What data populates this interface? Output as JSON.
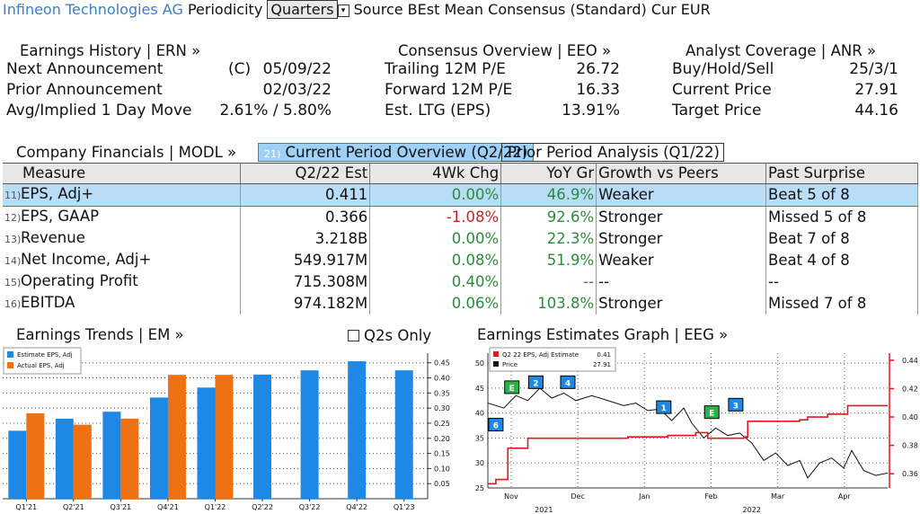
{
  "header": {
    "company": "Infineon Technologies AG",
    "periodicity_label": "Periodicity",
    "periodicity_value": "Quarters",
    "source_text": "Source BEst Mean Consensus (Standard) Cur EUR"
  },
  "earnings_history": {
    "title": "Earnings History | ERN »",
    "rows": [
      {
        "label": "Next Announcement",
        "prefix": "(C)",
        "value": "05/09/22"
      },
      {
        "label": "Prior Announcement",
        "prefix": "",
        "value": "02/03/22"
      },
      {
        "label": "Avg/Implied 1 Day Move",
        "prefix": "",
        "value": "2.61% / 5.80%"
      }
    ]
  },
  "consensus": {
    "title": "Consensus Overview | EEO »",
    "rows": [
      {
        "label": "Trailing 12M P/E",
        "value": "26.72"
      },
      {
        "label": "Forward 12M P/E",
        "value": "16.33"
      },
      {
        "label": "Est. LTG (EPS)",
        "value": "13.91%"
      }
    ]
  },
  "analyst": {
    "title": "Analyst Coverage | ANR »",
    "rows": [
      {
        "label": "Buy/Hold/Sell",
        "value": "25/3/1"
      },
      {
        "label": "Current Price",
        "value": "27.91"
      },
      {
        "label": "Target Price",
        "value": "44.16"
      }
    ]
  },
  "financials": {
    "title": "Company Financials | MODL »",
    "tab_current_num": "21)",
    "tab_current": "Current Period Overview (Q2/22)",
    "tab_prior": "Prior Period Analysis (Q1/22)",
    "columns": [
      "Measure",
      "Q2/22 Est",
      "4Wk Chg",
      "YoY Gr",
      "Growth vs Peers",
      "Past Surprise"
    ],
    "rows": [
      {
        "num": "11)",
        "measure": "EPS, Adj+",
        "est": "0.411",
        "chg": "0.00%",
        "chg_class": "pos",
        "yoy": "46.9%",
        "peers": "Weaker",
        "surprise": "Beat 5 of 8"
      },
      {
        "num": "12)",
        "measure": "EPS, GAAP",
        "est": "0.366",
        "chg": "-1.08%",
        "chg_class": "neg",
        "yoy": "92.6%",
        "peers": "Stronger",
        "surprise": "Missed 5 of 8"
      },
      {
        "num": "13)",
        "measure": "Revenue",
        "est": "3.218B",
        "chg": "0.00%",
        "chg_class": "pos",
        "yoy": "22.3%",
        "peers": "Stronger",
        "surprise": "Beat 7 of 8"
      },
      {
        "num": "14)",
        "measure": "Net Income, Adj+",
        "est": "549.917M",
        "chg": "0.08%",
        "chg_class": "pos",
        "yoy": "51.9%",
        "peers": "Weaker",
        "surprise": "Beat 4 of 8"
      },
      {
        "num": "15)",
        "measure": "Operating Profit",
        "est": "715.308M",
        "chg": "0.40%",
        "chg_class": "pos",
        "yoy": "--",
        "peers": "--",
        "surprise": "--"
      },
      {
        "num": "16)",
        "measure": "EBITDA",
        "est": "974.182M",
        "chg": "0.06%",
        "chg_class": "pos",
        "yoy": "103.8%",
        "peers": "Stronger",
        "surprise": "Missed 7 of 8"
      }
    ]
  },
  "earnings_trends": {
    "title": "Earnings Trends | EM »",
    "q2s_only_label": "Q2s Only"
  },
  "estimates_graph": {
    "title": "Earnings Estimates Graph | EEG »"
  },
  "chart_data": [
    {
      "type": "bar",
      "categories": [
        "Q1'21",
        "Q2'21",
        "Q3'21",
        "Q4'21",
        "Q1'22",
        "Q2'22",
        "Q3'22",
        "Q4'22",
        "Q1'23"
      ],
      "series": [
        {
          "name": "Estimate EPS, Adj",
          "color": "#1e88e5",
          "values": [
            0.225,
            0.265,
            0.288,
            0.335,
            0.368,
            0.411,
            0.425,
            0.455,
            0.425
          ]
        },
        {
          "name": "Actual EPS, Adj",
          "color": "#f07014",
          "values": [
            0.283,
            0.245,
            0.265,
            0.41,
            0.41,
            null,
            null,
            null,
            null
          ]
        }
      ],
      "ylim": [
        0,
        0.47
      ],
      "yticks": [
        "0.05",
        "0.10",
        "0.15",
        "0.20",
        "0.25",
        "0.30",
        "0.35",
        "0.40",
        "0.45"
      ],
      "legend": "top-left",
      "grid": true
    },
    {
      "type": "line",
      "x_ticks": [
        "Nov",
        "Dec",
        "Jan",
        "Feb",
        "Mar",
        "Apr"
      ],
      "year_labels": [
        "2021",
        "2022"
      ],
      "left_axis": {
        "ticks": [
          "25",
          "30",
          "35",
          "40",
          "45",
          "50"
        ],
        "range": [
          25,
          52
        ]
      },
      "right_axis": {
        "ticks": [
          "0.36",
          "0.38",
          "0.40",
          "0.42",
          "0.44"
        ],
        "range": [
          0.35,
          0.445
        ]
      },
      "series": [
        {
          "name": "Q2 22 EPS, Adj Estimate",
          "last": "0.41",
          "color": "#e8141e",
          "axis": "right",
          "points": [
            [
              0.0,
              0.353
            ],
            [
              0.02,
              0.356
            ],
            [
              0.05,
              0.378
            ],
            [
              0.1,
              0.385
            ],
            [
              0.2,
              0.385
            ],
            [
              0.35,
              0.386
            ],
            [
              0.45,
              0.387
            ],
            [
              0.5,
              0.387
            ],
            [
              0.52,
              0.389
            ],
            [
              0.55,
              0.385
            ],
            [
              0.6,
              0.385
            ],
            [
              0.64,
              0.386
            ],
            [
              0.65,
              0.397
            ],
            [
              0.72,
              0.397
            ],
            [
              0.78,
              0.398
            ],
            [
              0.8,
              0.4
            ],
            [
              0.85,
              0.402
            ],
            [
              0.9,
              0.408
            ],
            [
              1.0,
              0.408
            ]
          ]
        },
        {
          "name": "Price",
          "last": "27.91",
          "color": "#111111",
          "axis": "left",
          "points": [
            [
              0.0,
              42
            ],
            [
              0.04,
              41
            ],
            [
              0.07,
              43.5
            ],
            [
              0.1,
              42.5
            ],
            [
              0.13,
              45
            ],
            [
              0.16,
              43
            ],
            [
              0.19,
              44
            ],
            [
              0.22,
              42.5
            ],
            [
              0.26,
              43.5
            ],
            [
              0.3,
              42.5
            ],
            [
              0.34,
              41.5
            ],
            [
              0.37,
              42
            ],
            [
              0.4,
              40.5
            ],
            [
              0.43,
              40.8
            ],
            [
              0.46,
              38.5
            ],
            [
              0.49,
              41
            ],
            [
              0.51,
              38
            ],
            [
              0.54,
              35
            ],
            [
              0.57,
              37
            ],
            [
              0.6,
              35.5
            ],
            [
              0.63,
              36
            ],
            [
              0.66,
              34
            ],
            [
              0.69,
              30.5
            ],
            [
              0.72,
              32
            ],
            [
              0.75,
              29.5
            ],
            [
              0.78,
              30.5
            ],
            [
              0.8,
              27
            ],
            [
              0.83,
              30
            ],
            [
              0.86,
              31
            ],
            [
              0.89,
              29
            ],
            [
              0.91,
              32.5
            ],
            [
              0.94,
              28.5
            ],
            [
              0.97,
              27.5
            ],
            [
              1.0,
              28
            ]
          ]
        }
      ],
      "markers": [
        {
          "label": "E",
          "color": "#2bb34a"
        },
        {
          "label": "2",
          "color": "#1e88e5"
        },
        {
          "label": "4",
          "color": "#1e88e5"
        },
        {
          "label": "6",
          "color": "#1e88e5"
        },
        {
          "label": "1",
          "color": "#1e88e5"
        },
        {
          "label": "E",
          "color": "#2bb34a"
        },
        {
          "label": "3",
          "color": "#1e88e5"
        }
      ]
    }
  ]
}
